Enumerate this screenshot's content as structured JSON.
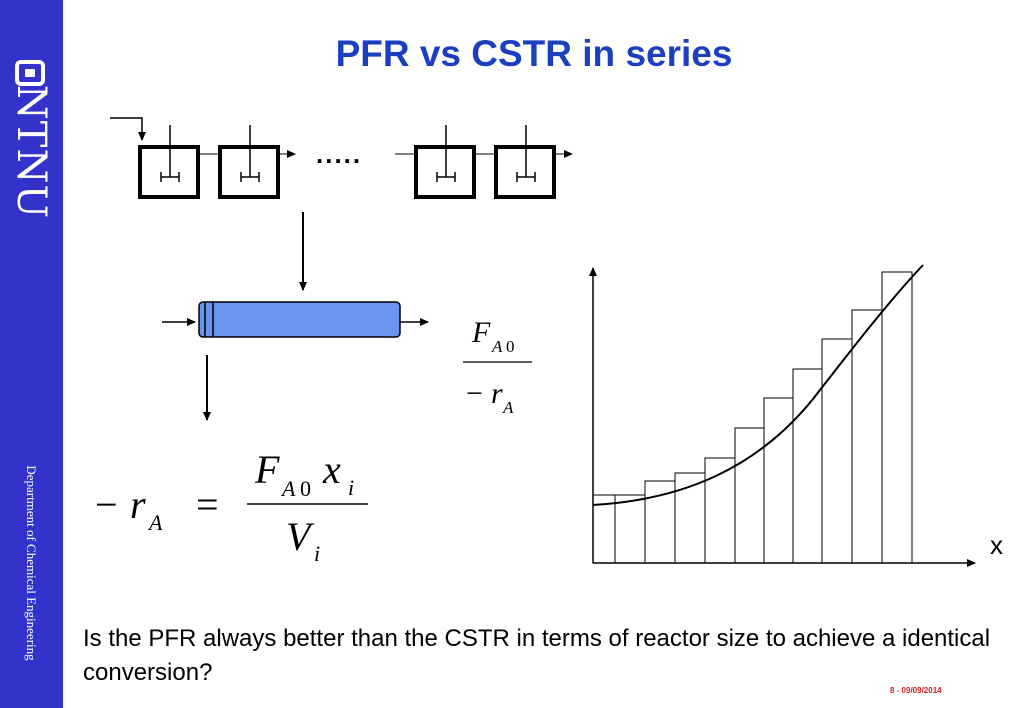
{
  "sidebar": {
    "logo_text": "NTNU",
    "department": "Department of Chemical Engineering"
  },
  "title": "PFR vs CSTR in series",
  "series_dots": ".....",
  "graph": {
    "x_axis_label": "x"
  },
  "question": "Is the PFR always better than the CSTR in terms of reactor size to achieve a identical conversion?",
  "footer": "8 - 09/09/2014",
  "colors": {
    "sidebar": "#3333cc",
    "title": "#1b3fc0",
    "pfr_fill": "#6c95f0",
    "footer": "#d02020"
  }
}
